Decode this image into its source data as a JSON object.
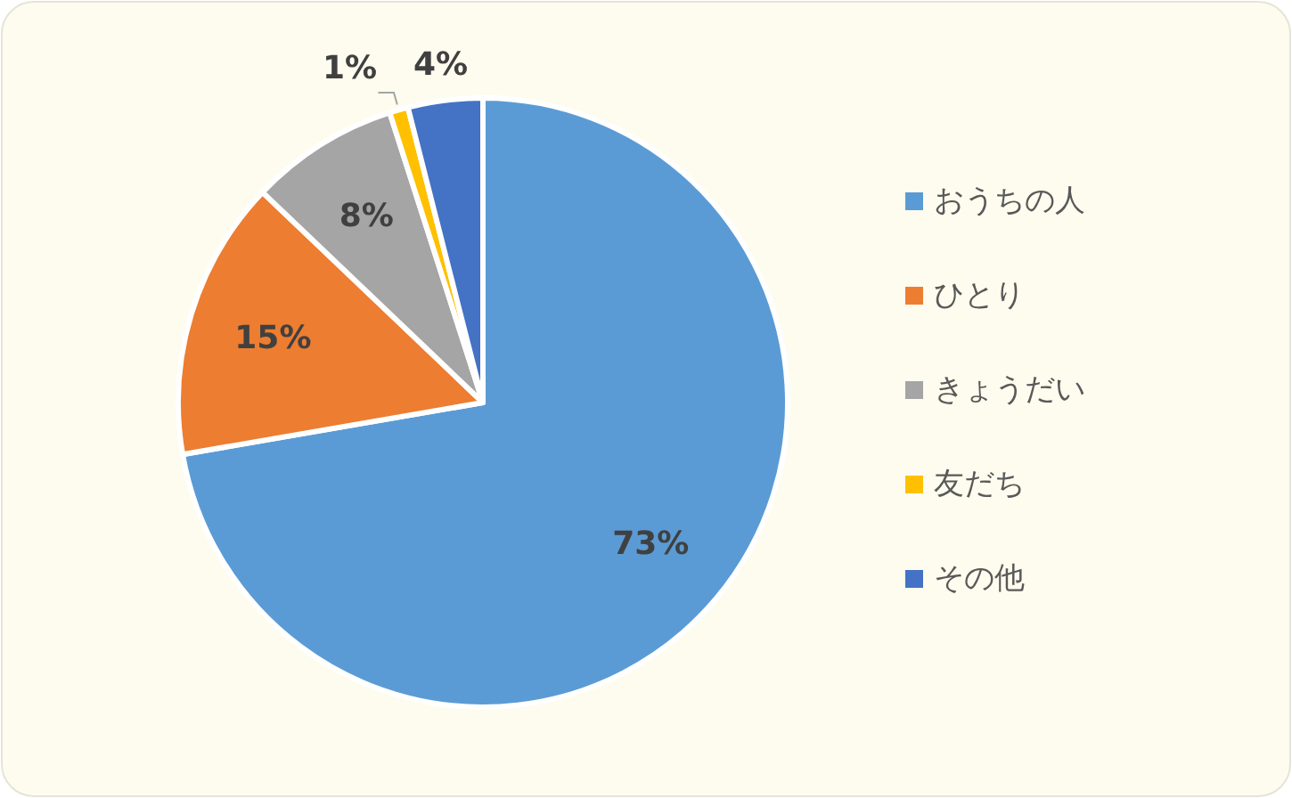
{
  "chart_data": {
    "type": "pie",
    "categories": [
      "おうちの人",
      "ひとり",
      "きょうだい",
      "友だち",
      "その他"
    ],
    "values": [
      73,
      15,
      8,
      1,
      4
    ],
    "colors": [
      "#5b9bd5",
      "#ed7d31",
      "#a5a5a5",
      "#ffc000",
      "#4472c4"
    ],
    "value_labels": [
      "73%",
      "15%",
      "8%",
      "1%",
      "4%"
    ],
    "legend": "right"
  }
}
